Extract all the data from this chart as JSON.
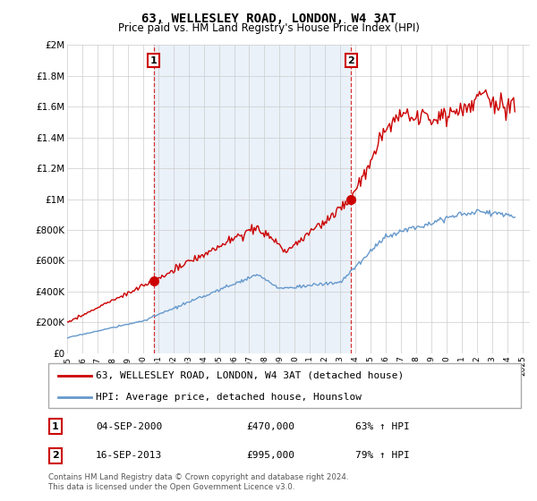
{
  "title": "63, WELLESLEY ROAD, LONDON, W4 3AT",
  "subtitle": "Price paid vs. HM Land Registry's House Price Index (HPI)",
  "legend_line1": "63, WELLESLEY ROAD, LONDON, W4 3AT (detached house)",
  "legend_line2": "HPI: Average price, detached house, Hounslow",
  "sale1_date": "04-SEP-2000",
  "sale1_price": "£470,000",
  "sale1_hpi": "63% ↑ HPI",
  "sale1_year": 2000.71,
  "sale1_value": 470000,
  "sale2_date": "16-SEP-2013",
  "sale2_price": "£995,000",
  "sale2_hpi": "79% ↑ HPI",
  "sale2_year": 2013.71,
  "sale2_value": 995000,
  "footnote": "Contains HM Land Registry data © Crown copyright and database right 2024.\nThis data is licensed under the Open Government Licence v3.0.",
  "red_color": "#cc0000",
  "blue_color": "#6699cc",
  "shade_color": "#dce9f5",
  "grid_color": "#cccccc",
  "background_color": "#ffffff",
  "ylim": [
    0,
    2000000
  ],
  "xlim": [
    1995,
    2025.5
  ],
  "yticks": [
    0,
    200000,
    400000,
    600000,
    800000,
    1000000,
    1200000,
    1400000,
    1600000,
    1800000,
    2000000
  ],
  "ytick_labels": [
    "£0",
    "£200K",
    "£400K",
    "£600K",
    "£800K",
    "£1M",
    "£1.2M",
    "£1.4M",
    "£1.6M",
    "£1.8M",
    "£2M"
  ],
  "xtick_years": [
    1995,
    1996,
    1997,
    1998,
    1999,
    2000,
    2001,
    2002,
    2003,
    2004,
    2005,
    2006,
    2007,
    2008,
    2009,
    2010,
    2011,
    2012,
    2013,
    2014,
    2015,
    2016,
    2017,
    2018,
    2019,
    2020,
    2021,
    2022,
    2023,
    2024,
    2025
  ]
}
